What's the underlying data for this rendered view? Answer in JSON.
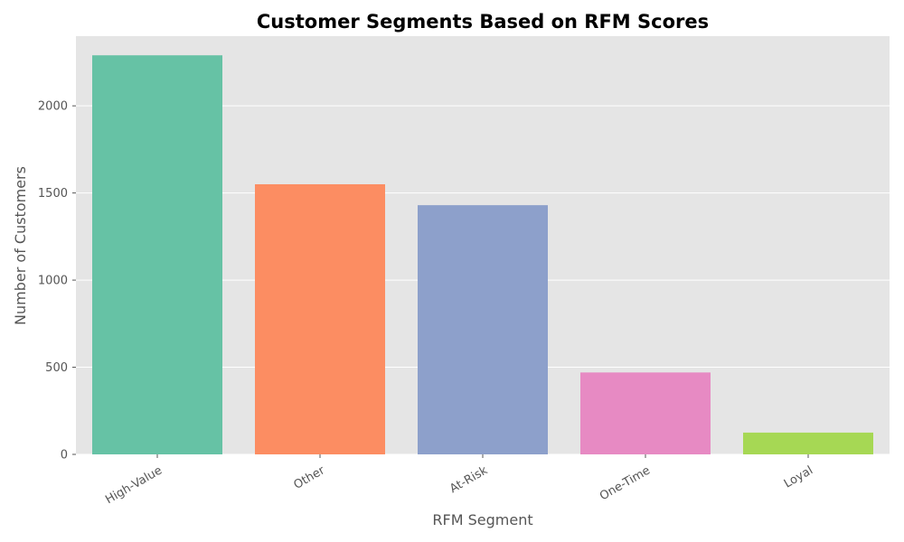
{
  "chart_data": {
    "type": "bar",
    "title": "Customer Segments Based on RFM Scores",
    "xlabel": "RFM Segment",
    "ylabel": "Number of Customers",
    "categories": [
      "High-Value",
      "Other",
      "At-Risk",
      "One-Time",
      "Loyal"
    ],
    "values": [
      2290,
      1550,
      1430,
      470,
      125
    ],
    "colors": [
      "#66c2a5",
      "#fc8d62",
      "#8da0cb",
      "#e78ac3",
      "#a6d854"
    ],
    "ylim": [
      0,
      2400
    ],
    "yticks": [
      0,
      500,
      1000,
      1500,
      2000
    ],
    "ytick_labels": [
      "0",
      "500",
      "1000",
      "1500",
      "2000"
    ],
    "xtick_rotation_deg": 30,
    "grid": true,
    "background_color": "#e5e5e5"
  }
}
